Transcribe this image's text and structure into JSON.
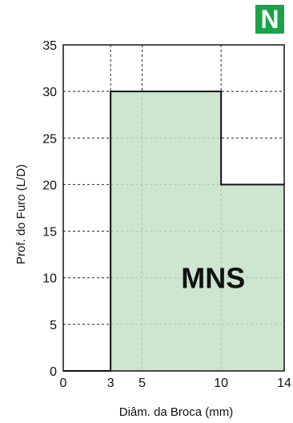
{
  "badge": {
    "letter": "N",
    "color": "#1aa34a"
  },
  "chart_data": {
    "type": "area",
    "x": [
      0,
      3,
      3,
      10,
      10,
      14
    ],
    "y": [
      0,
      0,
      30,
      30,
      20,
      20
    ],
    "fill_color": "#c3e2c8",
    "region_label": "MNS",
    "xlabel": "Diâm. da Broca (mm)",
    "ylabel": "Prof. do Furo (L/D)",
    "xlim": [
      0,
      14
    ],
    "ylim": [
      0,
      35
    ],
    "xticks": [
      0,
      3,
      5,
      10,
      14
    ],
    "yticks": [
      0,
      5,
      10,
      15,
      20,
      25,
      30,
      35
    ],
    "grid": true,
    "region_label_position": [
      9.5,
      10
    ]
  }
}
